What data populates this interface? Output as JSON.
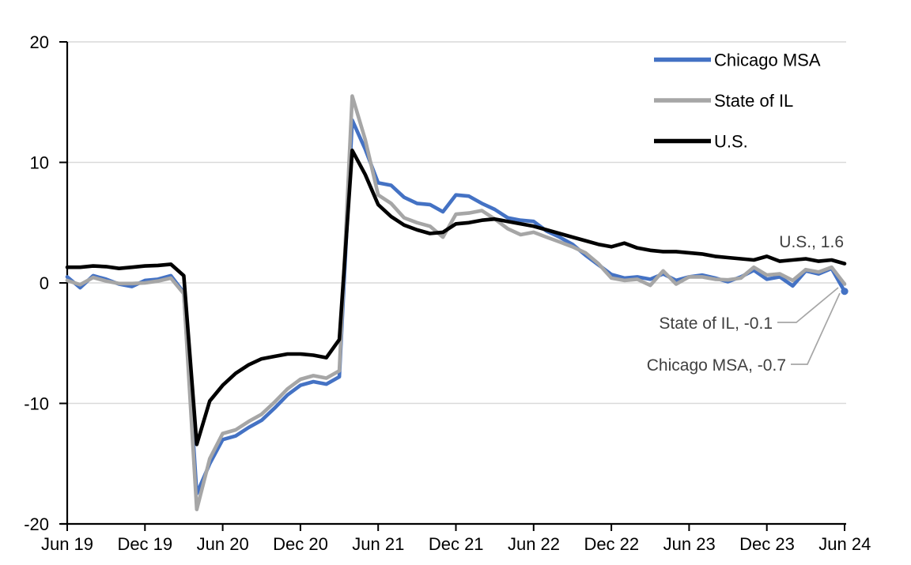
{
  "chart_data": {
    "type": "line",
    "title": "",
    "x_start": "2019-06",
    "x_end": "2024-06",
    "frequency": "monthly",
    "x_tick_labels": [
      "Jun 19",
      "Dec 19",
      "Jun 20",
      "Dec 20",
      "Jun 21",
      "Dec 21",
      "Jun 22",
      "Dec 22",
      "Jun 23",
      "Dec 23",
      "Jun 24"
    ],
    "y_tick_labels": [
      "20",
      "10",
      "0",
      "-10",
      "-20"
    ],
    "y_ticks": [
      20,
      10,
      0,
      -10,
      -20
    ],
    "ylim": [
      -20,
      20
    ],
    "grid": "horizontal",
    "gridline_color": "#D9D9D9",
    "axis_color": "#000000",
    "legend_position": "top-right-inside",
    "series": [
      {
        "name": "Chicago MSA",
        "color": "#4472C4",
        "end_marker": true,
        "values": [
          0.5,
          -0.4,
          0.6,
          0.3,
          -0.1,
          -0.3,
          0.2,
          0.3,
          0.6,
          -0.8,
          -17.5,
          -15.0,
          -13.0,
          -12.7,
          -12.0,
          -11.4,
          -10.4,
          -9.3,
          -8.5,
          -8.2,
          -8.4,
          -7.8,
          13.5,
          11.1,
          8.3,
          8.1,
          7.1,
          6.6,
          6.5,
          5.9,
          7.3,
          7.2,
          6.6,
          6.1,
          5.4,
          5.2,
          5.1,
          4.3,
          3.8,
          3.2,
          2.3,
          1.5,
          0.7,
          0.4,
          0.5,
          0.3,
          0.75,
          0.2,
          0.5,
          0.65,
          0.4,
          0.1,
          0.5,
          1.05,
          0.3,
          0.5,
          -0.25,
          1.0,
          0.75,
          1.2,
          -0.7
        ]
      },
      {
        "name": "State of IL",
        "color": "#A6A6A6",
        "end_marker": false,
        "values": [
          0.2,
          -0.15,
          0.45,
          0.15,
          -0.05,
          -0.05,
          0.0,
          0.15,
          0.4,
          -0.9,
          -18.8,
          -14.6,
          -12.5,
          -12.2,
          -11.5,
          -10.9,
          -9.9,
          -8.8,
          -8.0,
          -7.7,
          -7.9,
          -7.3,
          15.5,
          11.9,
          7.3,
          6.6,
          5.4,
          5.0,
          4.7,
          3.8,
          5.7,
          5.8,
          6.0,
          5.3,
          4.5,
          4.0,
          4.2,
          3.8,
          3.4,
          3.0,
          2.5,
          1.6,
          0.4,
          0.2,
          0.3,
          -0.2,
          1.0,
          -0.1,
          0.5,
          0.5,
          0.3,
          0.25,
          0.4,
          1.3,
          0.65,
          0.75,
          0.2,
          1.1,
          0.9,
          1.3,
          -0.1
        ]
      },
      {
        "name": "U.S.",
        "color": "#000000",
        "end_marker": false,
        "values": [
          1.3,
          1.3,
          1.4,
          1.35,
          1.2,
          1.3,
          1.4,
          1.45,
          1.55,
          0.6,
          -13.4,
          -9.8,
          -8.5,
          -7.5,
          -6.8,
          -6.3,
          -6.1,
          -5.9,
          -5.9,
          -6.0,
          -6.2,
          -4.7,
          11.0,
          9.0,
          6.5,
          5.5,
          4.8,
          4.4,
          4.1,
          4.2,
          4.9,
          5.0,
          5.2,
          5.3,
          5.1,
          4.9,
          4.7,
          4.4,
          4.1,
          3.8,
          3.5,
          3.2,
          3.0,
          3.3,
          2.9,
          2.7,
          2.6,
          2.6,
          2.5,
          2.4,
          2.2,
          2.1,
          2.0,
          1.9,
          2.2,
          1.8,
          1.9,
          2.0,
          1.8,
          1.9,
          1.6
        ]
      }
    ],
    "annotations": [
      {
        "series": "U.S.",
        "label": "U.S., 1.6",
        "value": 1.6
      },
      {
        "series": "State of IL",
        "label": "State of IL, -0.1",
        "value": -0.1
      },
      {
        "series": "Chicago MSA",
        "label": "Chicago MSA, -0.7",
        "value": -0.7
      }
    ],
    "leader_line_color": "#A6A6A6"
  }
}
